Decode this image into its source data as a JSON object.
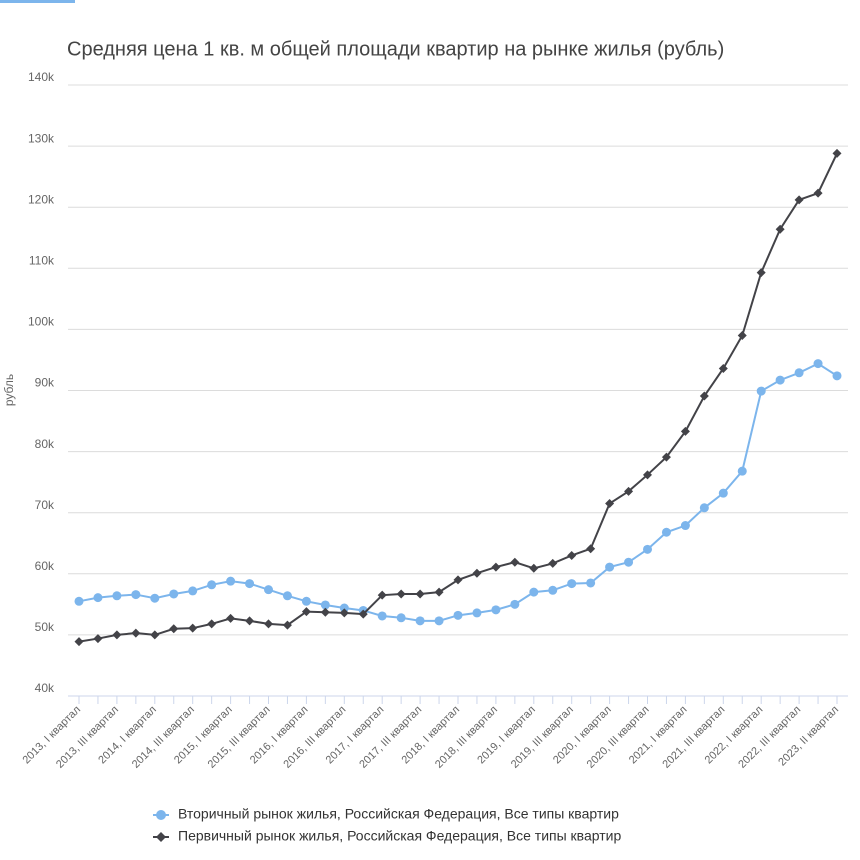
{
  "chart_data": {
    "type": "line",
    "title": "Средняя цена 1 кв. м общей площади квартир на рынке жилья (рубль)",
    "y_label": "рубль",
    "categories": [
      "2013, I квартал",
      null,
      "2013, III квартал",
      null,
      "2014, I квартал",
      null,
      "2014, III квартал",
      null,
      "2015, I квартал",
      null,
      "2015, III квартал",
      null,
      "2016, I квартал",
      null,
      "2016, III квартал",
      null,
      "2017, I квартал",
      null,
      "2017, III квартал",
      null,
      "2018, I квартал",
      null,
      "2018, III квартал",
      null,
      "2019, I квартал",
      null,
      "2019, III квартал",
      null,
      "2020, I квартал",
      null,
      "2020, III квартал",
      null,
      "2021, I квартал",
      null,
      "2021, III квартал",
      null,
      "2022, I квартал",
      null,
      "2022, III квартал",
      null,
      "2023, II квартал"
    ],
    "series": [
      {
        "name": "Вторичный рынок жилья, Российская Федерация, Все типы квартир",
        "color": "#7cb5ec",
        "marker": "circle",
        "values": [
          55500,
          56100,
          56400,
          56600,
          56000,
          56700,
          57200,
          58200,
          58800,
          58400,
          57400,
          56400,
          55500,
          54900,
          54400,
          54000,
          53100,
          52800,
          52300,
          52300,
          53200,
          53600,
          54100,
          55000,
          57000,
          57300,
          58400,
          58500,
          61100,
          61900,
          64000,
          66800,
          67900,
          70800,
          73200,
          76800,
          89900,
          91700,
          92900,
          94400,
          92400
        ]
      },
      {
        "name": "Первичный рынок жилья, Российская Федерация, Все типы квартир",
        "color": "#434348",
        "marker": "diamond",
        "values": [
          48900,
          49400,
          50000,
          50300,
          50000,
          51000,
          51100,
          51800,
          52700,
          52300,
          51800,
          51600,
          53800,
          53700,
          53600,
          53400,
          56500,
          56700,
          56700,
          57000,
          59000,
          60100,
          61100,
          61900,
          60900,
          61700,
          63000,
          64100,
          71500,
          73500,
          76200,
          79100,
          83300,
          89100,
          93600,
          99000,
          109300,
          116400,
          121200,
          122300,
          128800
        ]
      }
    ],
    "ylim": [
      40000,
      140000
    ],
    "yticks": [
      {
        "value": 40000,
        "label": "40k"
      },
      {
        "value": 50000,
        "label": "50k"
      },
      {
        "value": 60000,
        "label": "60k"
      },
      {
        "value": 70000,
        "label": "70k"
      },
      {
        "value": 80000,
        "label": "80k"
      },
      {
        "value": 90000,
        "label": "90k"
      },
      {
        "value": 100000,
        "label": "100k"
      },
      {
        "value": 110000,
        "label": "110k"
      },
      {
        "value": 120000,
        "label": "120k"
      },
      {
        "value": 130000,
        "label": "130k"
      },
      {
        "value": 140000,
        "label": "140k"
      }
    ],
    "grid": true,
    "legend": "bottom"
  }
}
